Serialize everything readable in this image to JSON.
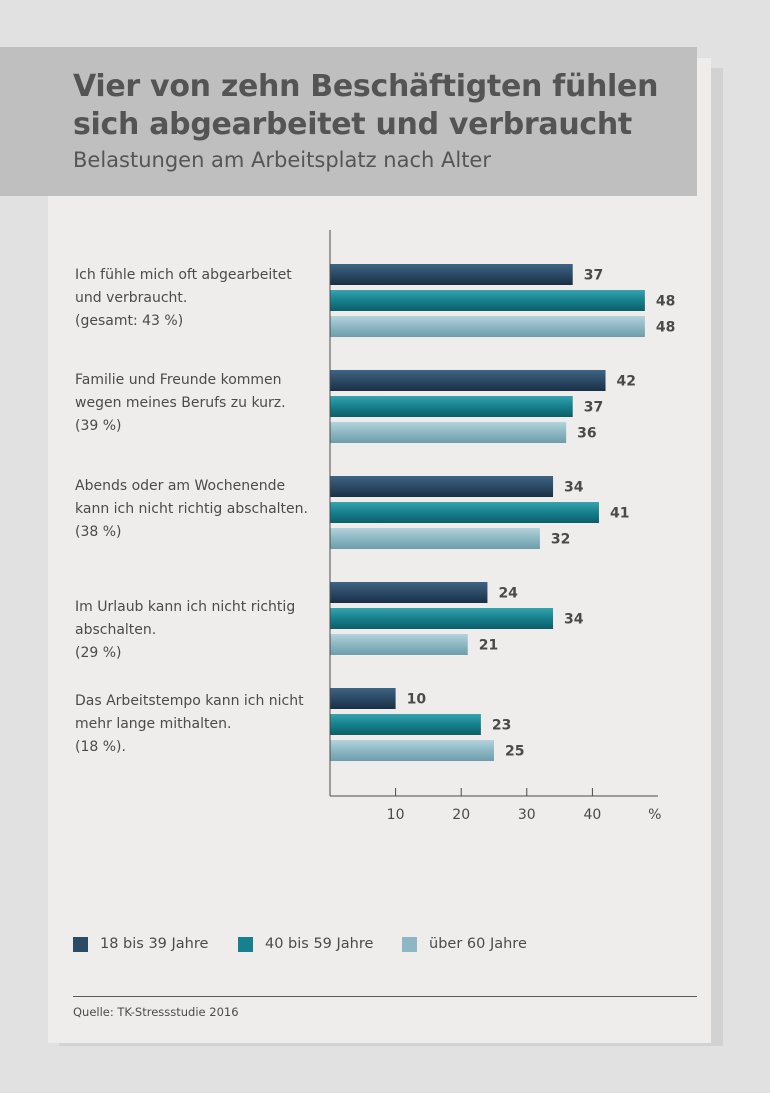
{
  "title_lines": [
    "Vier von zehn Beschäftigten fühlen",
    "sich abgearbeitet und verbraucht"
  ],
  "subtitle": "Belastungen am Arbeitsplatz nach Alter",
  "source": "Quelle: TK-Stressstudie 2016",
  "colors": {
    "series_dark": "#2b4a66",
    "series_mid": "#16808c",
    "series_light": "#8db7c3",
    "header_bg": "#bfbfbf",
    "card_bg": "#eeedec"
  },
  "chart_data": {
    "type": "bar",
    "orientation": "horizontal",
    "categories": [
      [
        "Ich fühle mich oft abgearbeitet",
        "und verbraucht.",
        "(gesamt: 43 %)"
      ],
      [
        "Familie und Freunde kommen",
        "wegen meines Berufs zu kurz.",
        "(39 %)"
      ],
      [
        "Abends oder am Wochenende",
        "kann ich nicht richtig abschalten.",
        "(38 %)"
      ],
      [
        "Im Urlaub kann ich nicht richtig",
        "abschalten.",
        "(29 %)"
      ],
      [
        "Das Arbeitstempo kann ich nicht",
        "mehr lange mithalten.",
        "(18 %)."
      ]
    ],
    "series": [
      {
        "name": "18 bis 39 Jahre",
        "values": [
          37,
          42,
          34,
          24,
          10
        ]
      },
      {
        "name": "40 bis 59 Jahre",
        "values": [
          48,
          37,
          41,
          34,
          23
        ]
      },
      {
        "name": "über 60 Jahre",
        "values": [
          48,
          36,
          32,
          21,
          25
        ]
      }
    ],
    "xticks": [
      "10",
      "20",
      "30",
      "40"
    ],
    "xunit": "%",
    "xlim": [
      0,
      50
    ],
    "grid": false,
    "legend_position": "bottom-left"
  }
}
